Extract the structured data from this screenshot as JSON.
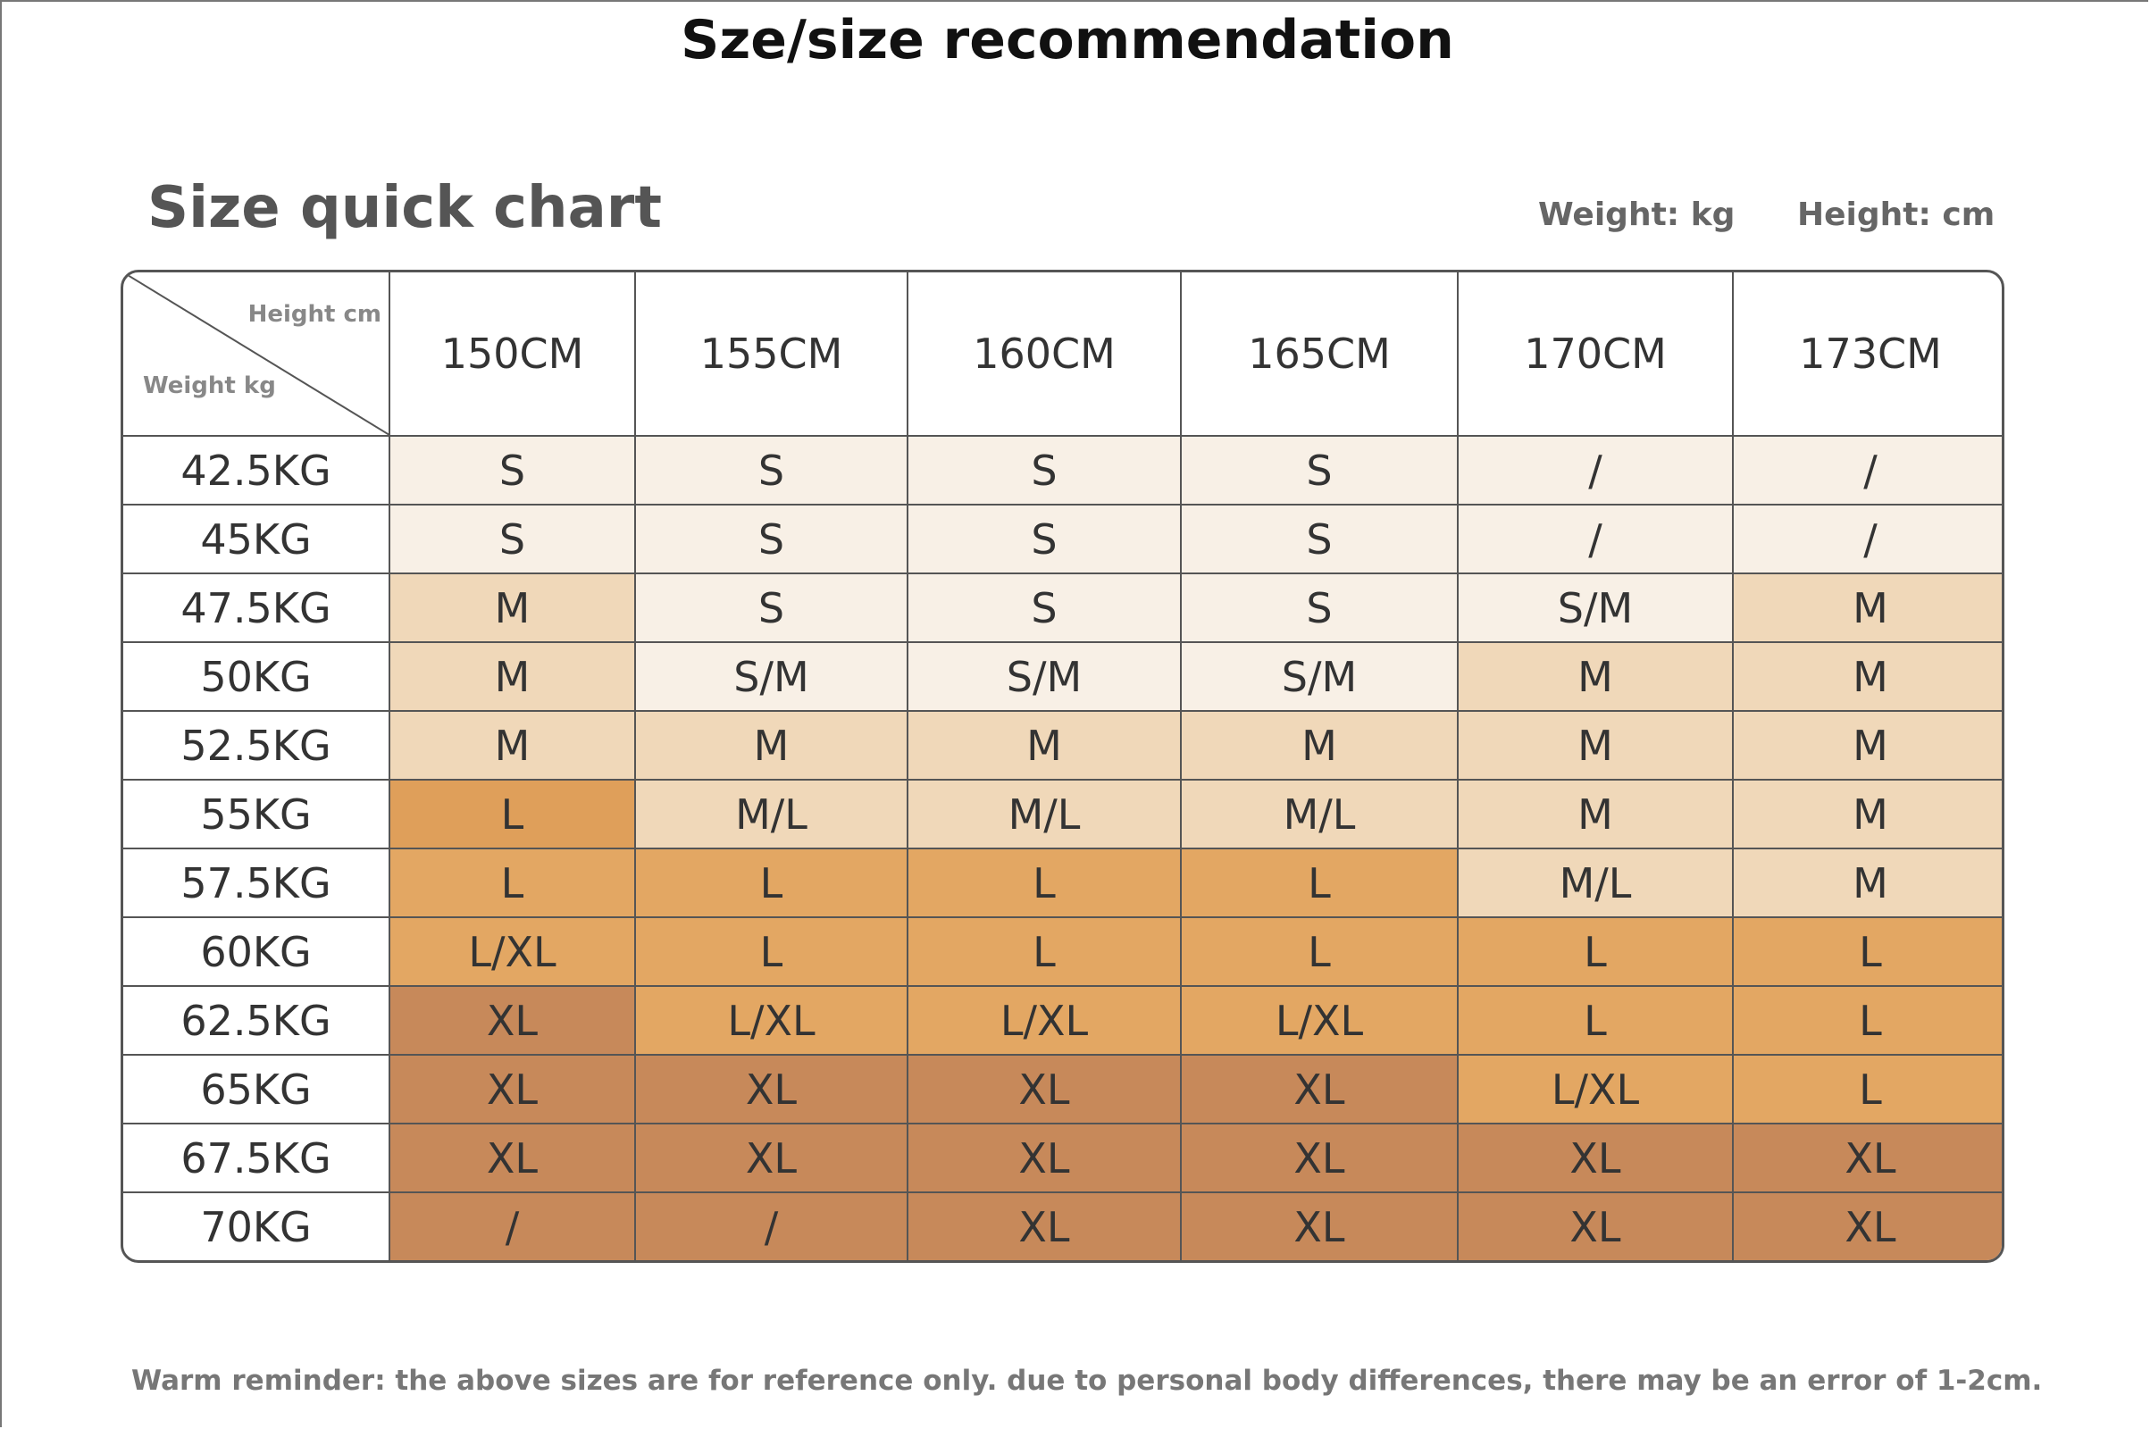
{
  "header": {
    "title": "Sze/size recommendation"
  },
  "chart_title": "Size quick chart",
  "units": {
    "weight": "Weight: kg",
    "height": "Height: cm"
  },
  "table": {
    "corner": {
      "top": "Height cm",
      "bottom": "Weight kg"
    },
    "columns": [
      "150CM",
      "155CM",
      "160CM",
      "165CM",
      "170CM",
      "173CM"
    ],
    "rows": [
      {
        "label": "42.5KG",
        "cells": [
          "S",
          "S",
          "S",
          "S",
          "/",
          "/"
        ],
        "colors": [
          "#f8f0e6",
          "#f8f0e6",
          "#f8f0e6",
          "#f8f0e6",
          "#f8f0e6",
          "#f8f0e6"
        ]
      },
      {
        "label": "45KG",
        "cells": [
          "S",
          "S",
          "S",
          "S",
          "/",
          "/"
        ],
        "colors": [
          "#f8f0e6",
          "#f8f0e6",
          "#f8f0e6",
          "#f8f0e6",
          "#f8f0e6",
          "#f8f0e6"
        ]
      },
      {
        "label": "47.5KG",
        "cells": [
          "M",
          "S",
          "S",
          "S",
          "S/M",
          "M"
        ],
        "colors": [
          "#f0d8b9",
          "#f8f0e6",
          "#f8f0e6",
          "#f8f0e6",
          "#f8f0e6",
          "#f0d8b9"
        ]
      },
      {
        "label": "50KG",
        "cells": [
          "M",
          "S/M",
          "S/M",
          "S/M",
          "M",
          "M"
        ],
        "colors": [
          "#f0d8b9",
          "#f8f0e6",
          "#f8f0e6",
          "#f8f0e6",
          "#f0d8b9",
          "#f0d8b9"
        ]
      },
      {
        "label": "52.5KG",
        "cells": [
          "M",
          "M",
          "M",
          "M",
          "M",
          "M"
        ],
        "colors": [
          "#f0d8b9",
          "#f0d8b9",
          "#f0d8b9",
          "#f0d8b9",
          "#f0d8b9",
          "#f0d8b9"
        ]
      },
      {
        "label": "55KG",
        "cells": [
          "L",
          "M/L",
          "M/L",
          "M/L",
          "M",
          "M"
        ],
        "colors": [
          "#df9f5a",
          "#f0d8b9",
          "#f0d8b9",
          "#f0d8b9",
          "#f0d8b9",
          "#f0d8b9"
        ]
      },
      {
        "label": "57.5KG",
        "cells": [
          "L",
          "L",
          "L",
          "L",
          "M/L",
          "M"
        ],
        "colors": [
          "#e3a763",
          "#e3a763",
          "#e3a763",
          "#e3a763",
          "#f0d8b9",
          "#f0d8b9"
        ]
      },
      {
        "label": "60KG",
        "cells": [
          "L/XL",
          "L",
          "L",
          "L",
          "L",
          "L"
        ],
        "colors": [
          "#e3a763",
          "#e3a763",
          "#e3a763",
          "#e3a763",
          "#e3a763",
          "#e3a763"
        ]
      },
      {
        "label": "62.5KG",
        "cells": [
          "XL",
          "L/XL",
          "L/XL",
          "L/XL",
          "L",
          "L"
        ],
        "colors": [
          "#c7895a",
          "#e3a763",
          "#e3a763",
          "#e3a763",
          "#e3a763",
          "#e3a763"
        ]
      },
      {
        "label": "65KG",
        "cells": [
          "XL",
          "XL",
          "XL",
          "XL",
          "L/XL",
          "L"
        ],
        "colors": [
          "#c7895a",
          "#c7895a",
          "#c7895a",
          "#c7895a",
          "#e3a763",
          "#e3a763"
        ]
      },
      {
        "label": "67.5KG",
        "cells": [
          "XL",
          "XL",
          "XL",
          "XL",
          "XL",
          "XL"
        ],
        "colors": [
          "#c7895a",
          "#c7895a",
          "#c7895a",
          "#c7895a",
          "#c7895a",
          "#c7895a"
        ]
      },
      {
        "label": "70KG",
        "cells": [
          "/",
          "/",
          "XL",
          "XL",
          "XL",
          "XL"
        ],
        "colors": [
          "#c7895a",
          "#c7895a",
          "#c7895a",
          "#c7895a",
          "#c7895a",
          "#c7895a"
        ]
      }
    ]
  },
  "footnote": "Warm reminder: the above sizes are for reference only. due to personal body differences, there may be an error of 1-2cm."
}
